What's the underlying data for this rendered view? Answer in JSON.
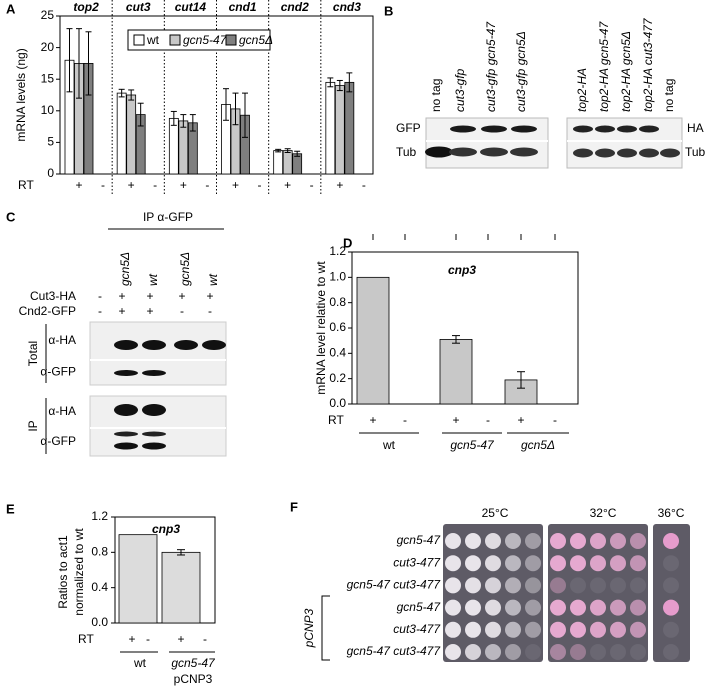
{
  "panel_labels": [
    "A",
    "B",
    "C",
    "D",
    "E",
    "F"
  ],
  "chart_data": [
    {
      "type": "bar",
      "y_label": "mRNA levels (ng)",
      "groups": [
        "top2",
        "cut3",
        "cut14",
        "cnd1",
        "cnd2",
        "cnd3"
      ],
      "series": [
        {
          "name": "wt",
          "color": "#ffffff",
          "italic": false,
          "values": [
            18,
            12.8,
            8.8,
            11,
            3.7,
            14.5
          ],
          "errors": [
            5,
            0.6,
            1.1,
            2.5,
            0.2,
            0.7
          ]
        },
        {
          "name": "gcn5-47",
          "color": "#c8c8c8",
          "italic": true,
          "values": [
            17.5,
            12.5,
            8.4,
            10.3,
            3.7,
            14
          ],
          "errors": [
            5.5,
            0.8,
            1,
            2.5,
            0.3,
            0.8
          ]
        },
        {
          "name": "gcn5Δ",
          "color": "#7f7f7f",
          "italic": true,
          "values": [
            17.5,
            9.4,
            8.1,
            9.3,
            3.2,
            14.5
          ],
          "errors": [
            5,
            1.8,
            1.3,
            3.5,
            0.4,
            1.5
          ]
        }
      ],
      "ylim": [
        0,
        25
      ],
      "yticks": [
        0,
        5,
        10,
        15,
        20,
        25
      ],
      "rt_label": "RT",
      "lane_signs": [
        "+",
        "-"
      ]
    },
    {
      "type": "bar",
      "title": "cnp3",
      "y_label": "mRNA level relative to wt",
      "categories": [
        "wt",
        "gcn5-47",
        "gcn5Δ"
      ],
      "italic_categories": [
        false,
        true,
        true
      ],
      "values": [
        1.0,
        0.51,
        0.19
      ],
      "errors": [
        null,
        0.03,
        0.065
      ],
      "color": "#c8c8c8",
      "ylim": [
        0,
        1.2
      ],
      "yticks": [
        {
          "value": 0,
          "label": "0.0"
        },
        0.2,
        0.4,
        0.6,
        0.8,
        {
          "value": 1,
          "label": "1.0"
        },
        1.2
      ],
      "rt_label": "RT",
      "lane_signs": [
        "+",
        "-"
      ]
    },
    {
      "type": "bar",
      "title": "cnp3",
      "y_label": [
        "Ratios to act1",
        "normalized to wt"
      ],
      "categories": [
        "wt",
        "gcn5-47"
      ],
      "italic_categories": [
        false,
        true
      ],
      "plasmid_label": "pCNP3",
      "values": [
        1.0,
        0.8
      ],
      "errors": [
        null,
        0.03
      ],
      "color": "#dcdcdc",
      "ylim": [
        0,
        1.2
      ],
      "yticks": [
        {
          "value": 0,
          "label": "0.0"
        },
        0.4,
        0.8,
        1.2
      ],
      "rt_label": "RT",
      "lane_signs": [
        "+",
        "-"
      ]
    }
  ],
  "blot_b": {
    "left_lanes": [
      {
        "label": "no tag",
        "italic": false
      },
      {
        "label": "cut3-gfp",
        "italic": true
      },
      {
        "label": "cut3-gfp gcn5-47",
        "italic": true
      },
      {
        "label": "cut3-gfp gcn5Δ",
        "italic": true
      }
    ],
    "left_rows": [
      "GFP",
      "Tub"
    ],
    "right_lanes": [
      {
        "label": "top2-HA",
        "italic": true
      },
      {
        "label": "top2-HA gcn5-47",
        "italic": true
      },
      {
        "label": "top2-HA gcn5Δ",
        "italic": true
      },
      {
        "label": "top2-HA cut3-477",
        "italic": true
      },
      {
        "label": "no tag",
        "italic": false
      }
    ],
    "right_rows": [
      "HA",
      "Tub"
    ]
  },
  "blot_c": {
    "header": "IP α-GFP",
    "lanes": [
      "gcn5Δ",
      "wt",
      "gcn5Δ",
      "wt"
    ],
    "conditions": [
      {
        "label": "Cut3-HA",
        "signs": [
          "-",
          "+",
          "+",
          "+",
          "+"
        ]
      },
      {
        "label": "Cnd2-GFP",
        "signs": [
          "-",
          "+",
          "+",
          "-",
          "-"
        ]
      }
    ],
    "sections": [
      {
        "label": "Total",
        "rows": [
          "α-HA",
          "α-GFP"
        ]
      },
      {
        "label": "IP",
        "rows": [
          "α-HA",
          "α-GFP"
        ]
      }
    ]
  },
  "plates": {
    "temperatures": [
      "25°C",
      "32°C",
      "36°C"
    ],
    "strains": [
      "gcn5-47",
      "cut3-477",
      "gcn5-47 cut3-477",
      "gcn5-47",
      "cut3-477",
      "gcn5-47 cut3-477"
    ],
    "plasmid": "pCNP3"
  }
}
